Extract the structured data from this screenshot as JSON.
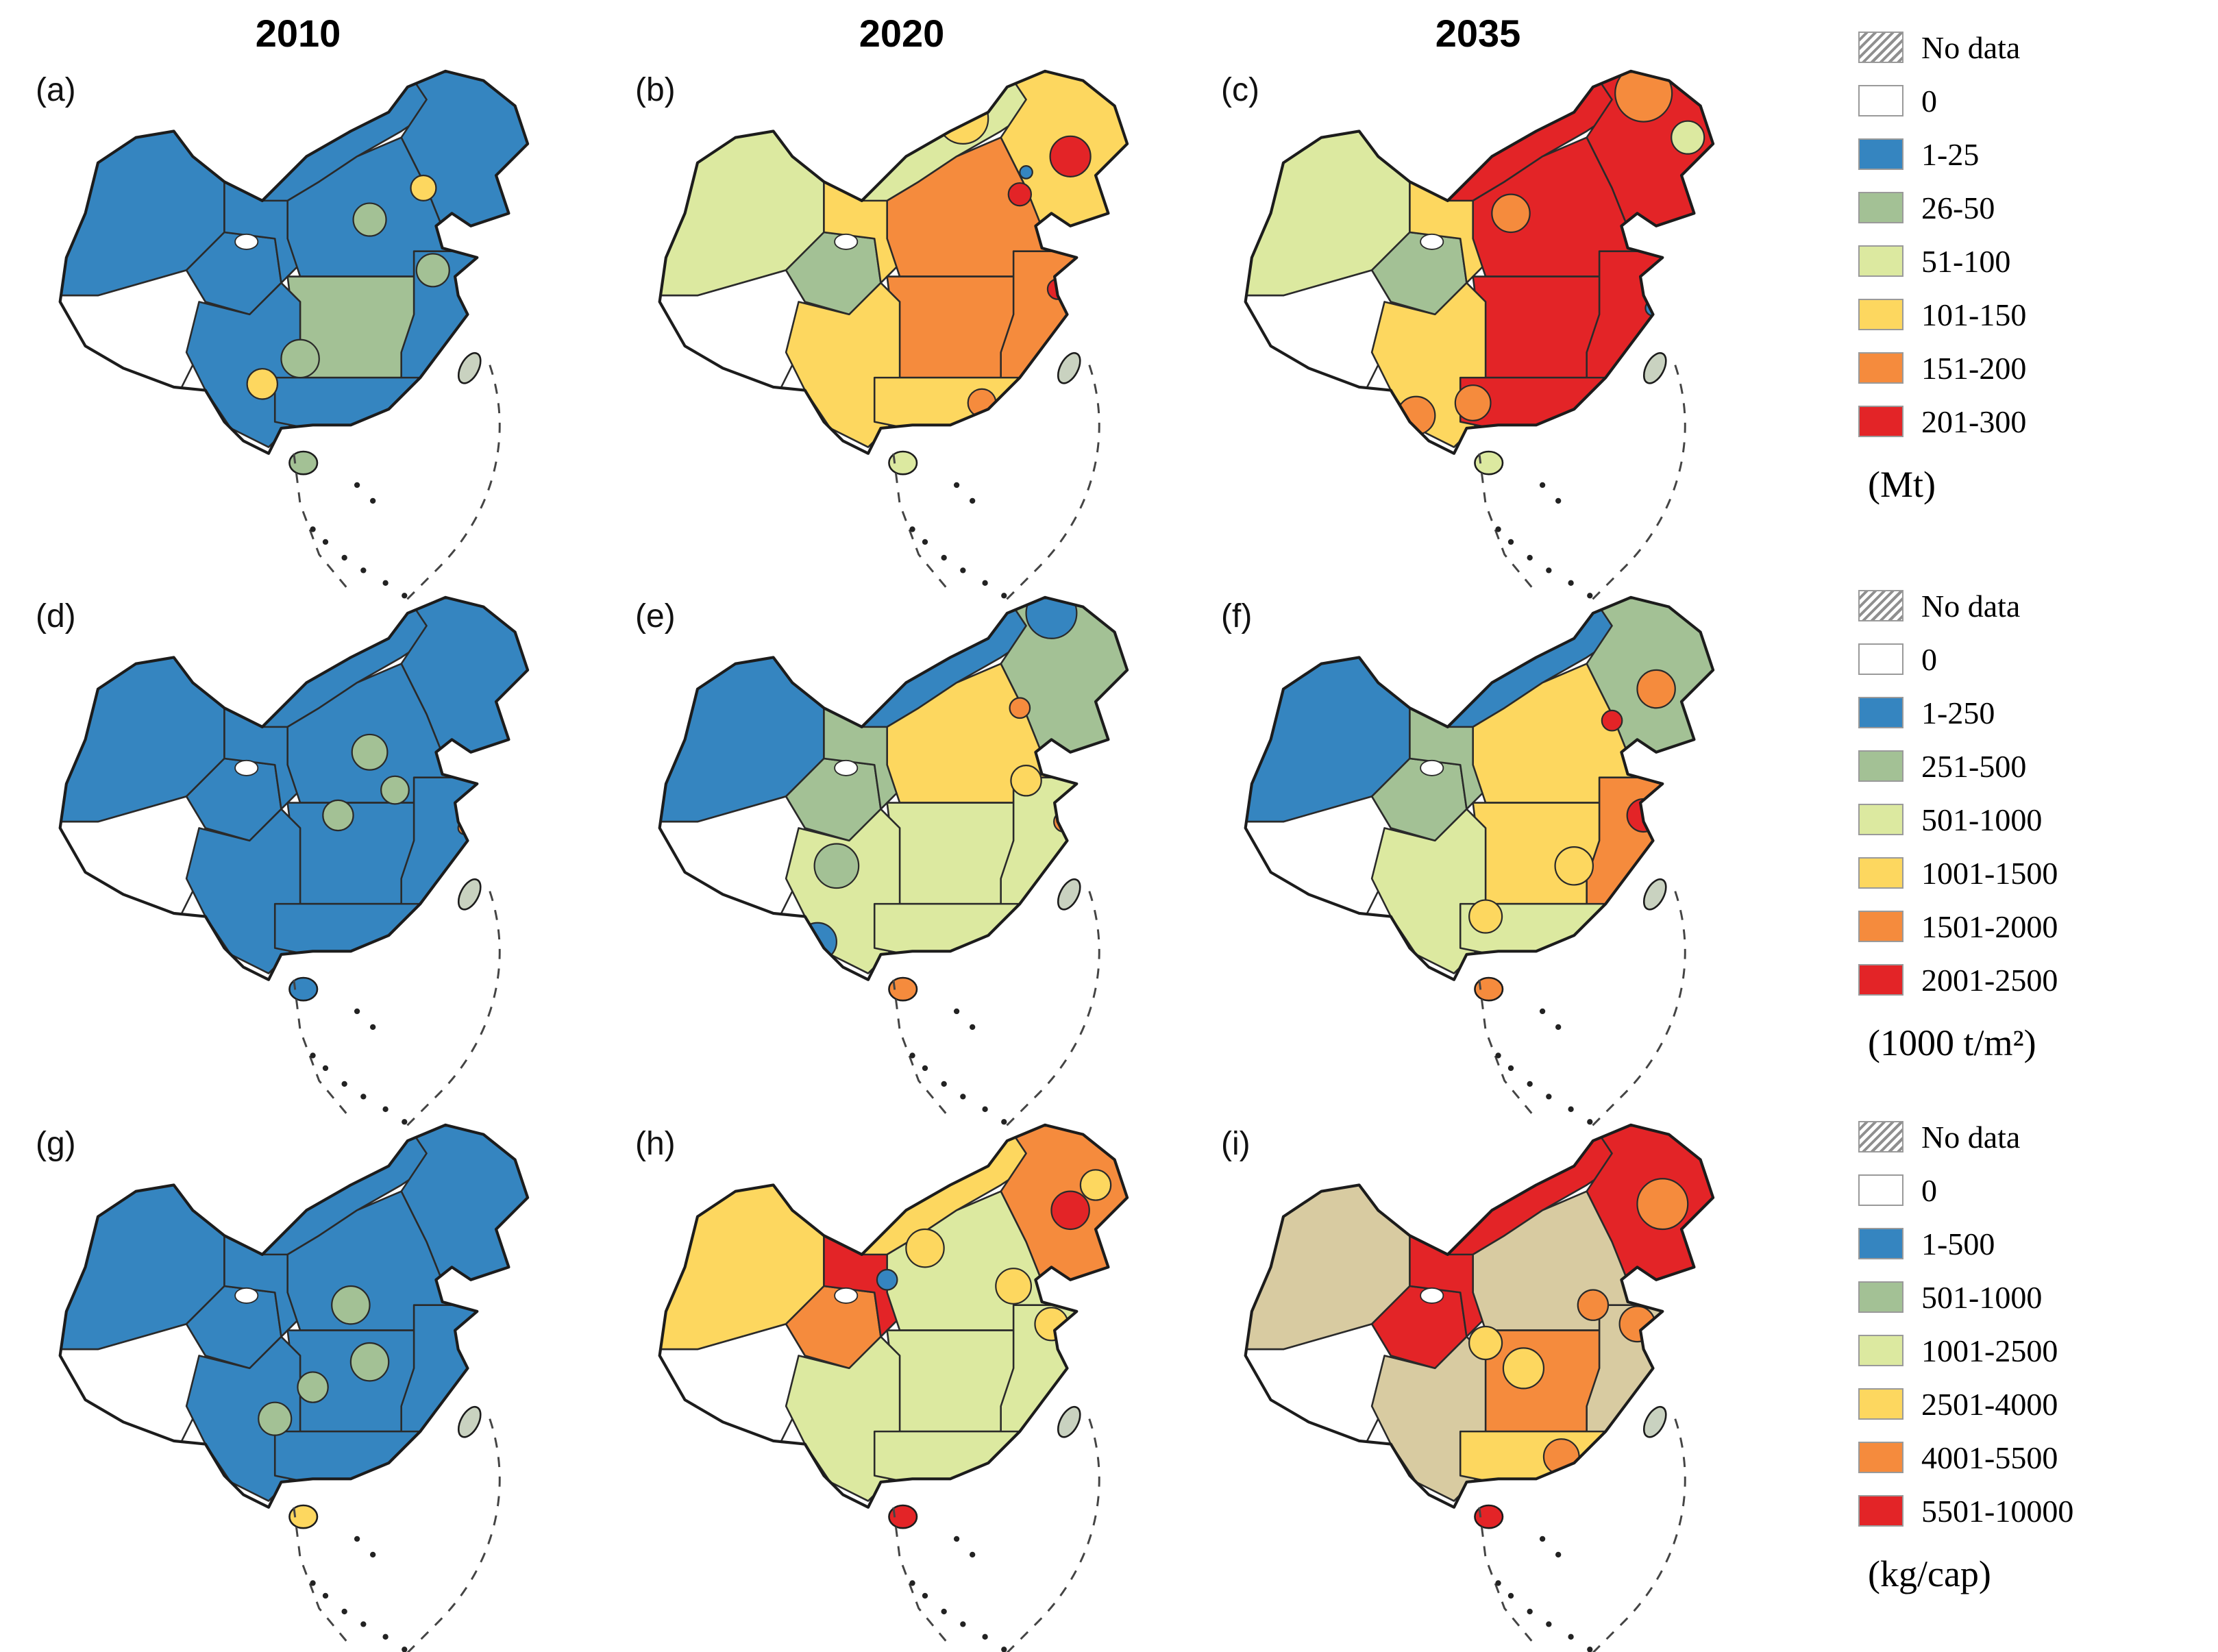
{
  "figure": {
    "column_headers": [
      "2010",
      "2020",
      "2035"
    ],
    "panel_labels": [
      "(a)",
      "(b)",
      "(c)",
      "(d)",
      "(e)",
      "(f)",
      "(g)",
      "(h)",
      "(i)"
    ]
  },
  "colors": {
    "white": "#ffffff",
    "blue": "#3585c0",
    "green": "#a3c195",
    "light_green": "#dce9a0",
    "yellow": "#fdd75f",
    "orange": "#f58b3d",
    "red": "#e32427",
    "tan": "#d8cba1",
    "gray": "#c9d2c0",
    "hatch_stripe": "#8f8f8f",
    "map_outline": "#1c1c1c"
  },
  "legends": [
    {
      "id": "mt",
      "unit": "(Mt)",
      "entries": [
        {
          "label": "No data",
          "swatch": "hatch"
        },
        {
          "label": "0",
          "swatch": "white"
        },
        {
          "label": "1-25",
          "swatch": "blue"
        },
        {
          "label": "26-50",
          "swatch": "green"
        },
        {
          "label": "51-100",
          "swatch": "light_green"
        },
        {
          "label": "101-150",
          "swatch": "yellow"
        },
        {
          "label": "151-200",
          "swatch": "orange"
        },
        {
          "label": "201-300",
          "swatch": "red"
        }
      ]
    },
    {
      "id": "t-per-m2",
      "unit": "(1000 t/m²)",
      "entries": [
        {
          "label": "No data",
          "swatch": "hatch"
        },
        {
          "label": "0",
          "swatch": "white"
        },
        {
          "label": "1-250",
          "swatch": "blue"
        },
        {
          "label": "251-500",
          "swatch": "green"
        },
        {
          "label": "501-1000",
          "swatch": "light_green"
        },
        {
          "label": "1001-1500",
          "swatch": "yellow"
        },
        {
          "label": "1501-2000",
          "swatch": "orange"
        },
        {
          "label": "2001-2500",
          "swatch": "red"
        }
      ]
    },
    {
      "id": "kg-per-cap",
      "unit": "(kg/cap)",
      "entries": [
        {
          "label": "No data",
          "swatch": "hatch"
        },
        {
          "label": "0",
          "swatch": "white"
        },
        {
          "label": "1-500",
          "swatch": "blue"
        },
        {
          "label": "501-1000",
          "swatch": "green"
        },
        {
          "label": "1001-2500",
          "swatch": "light_green"
        },
        {
          "label": "2501-4000",
          "swatch": "yellow"
        },
        {
          "label": "4001-5500",
          "swatch": "orange"
        },
        {
          "label": "5501-10000",
          "swatch": "red"
        }
      ]
    }
  ],
  "maps": {
    "panels": [
      {
        "id": "a",
        "year": "2010",
        "unit": "(Mt)",
        "regions": {
          "xinjiang": "blue",
          "tibet": "white",
          "qinghai": "blue",
          "gansu": "blue",
          "inner_mongolia": "blue",
          "northeast": "blue",
          "north_china": "blue",
          "central": "green",
          "east_coast": "blue",
          "southwest": "blue",
          "south": "blue"
        },
        "patches": [
          [
            65.5,
            20,
            2,
            "yellow"
          ],
          [
            40,
            51,
            2.4,
            "yellow"
          ],
          [
            46,
            47,
            3,
            "green"
          ],
          [
            67,
            33,
            2.6,
            "green"
          ],
          [
            57,
            25,
            2.6,
            "green"
          ]
        ],
        "hainan": "green",
        "taiwan": "gray"
      },
      {
        "id": "b",
        "year": "2020",
        "unit": "(Mt)",
        "regions": {
          "xinjiang": "light_green",
          "tibet": "white",
          "qinghai": "green",
          "gansu": "yellow",
          "inner_mongolia": "light_green",
          "northeast": "yellow",
          "north_china": "orange",
          "central": "orange",
          "east_coast": "orange",
          "southwest": "yellow",
          "south": "yellow"
        },
        "patches": [
          [
            56,
            9,
            4,
            "yellow"
          ],
          [
            73,
            15,
            3.2,
            "red"
          ],
          [
            65,
            21,
            1.8,
            "red"
          ],
          [
            66,
            17.5,
            1,
            "blue"
          ],
          [
            71,
            36,
            1.6,
            "red"
          ],
          [
            59,
            54,
            2.2,
            "orange"
          ]
        ],
        "hainan": "light_green",
        "taiwan": "gray"
      },
      {
        "id": "c",
        "year": "2035",
        "unit": "(Mt)",
        "regions": {
          "xinjiang": "light_green",
          "tibet": "white",
          "qinghai": "green",
          "gansu": "yellow",
          "inner_mongolia": "red",
          "northeast": "red",
          "north_china": "red",
          "central": "red",
          "east_coast": "red",
          "southwest": "yellow",
          "south": "red"
        },
        "patches": [
          [
            71,
            5,
            4.5,
            "orange"
          ],
          [
            78,
            12,
            2.6,
            "light_green"
          ],
          [
            35,
            56,
            3,
            "orange"
          ],
          [
            44,
            54,
            2.8,
            "orange"
          ],
          [
            50,
            24,
            3,
            "orange"
          ],
          [
            72.5,
            39,
            1.2,
            "blue"
          ]
        ],
        "hainan": "light_green",
        "taiwan": "gray"
      },
      {
        "id": "d",
        "year": "2010",
        "unit": "(1000 t/m²)",
        "regions": {
          "xinjiang": "blue",
          "tibet": "white",
          "qinghai": "blue",
          "gansu": "blue",
          "inner_mongolia": "blue",
          "northeast": "blue",
          "north_china": "blue",
          "central": "blue",
          "east_coast": "blue",
          "southwest": "blue",
          "south": "blue"
        },
        "patches": [
          [
            57,
            26,
            2.8,
            "green"
          ],
          [
            61,
            32,
            2.2,
            "green"
          ],
          [
            52,
            36,
            2.4,
            "green"
          ],
          [
            72,
            38,
            1,
            "orange"
          ]
        ],
        "hainan": "blue",
        "taiwan": "gray"
      },
      {
        "id": "e",
        "year": "2020",
        "unit": "(1000 t/m²)",
        "regions": {
          "xinjiang": "blue",
          "tibet": "white",
          "qinghai": "green",
          "gansu": "green",
          "inner_mongolia": "blue",
          "northeast": "green",
          "north_china": "yellow",
          "central": "light_green",
          "east_coast": "light_green",
          "southwest": "light_green",
          "south": "light_green"
        },
        "patches": [
          [
            70,
            4,
            4,
            "blue"
          ],
          [
            36,
            44,
            3.5,
            "green"
          ],
          [
            33,
            56,
            3,
            "blue"
          ],
          [
            72,
            37,
            1.6,
            "orange"
          ],
          [
            65,
            19,
            1.6,
            "orange"
          ],
          [
            66,
            30.5,
            2.4,
            "yellow"
          ]
        ],
        "hainan": "orange",
        "taiwan": "gray"
      },
      {
        "id": "f",
        "year": "2035",
        "unit": "(1000 t/m²)",
        "regions": {
          "xinjiang": "blue",
          "tibet": "white",
          "qinghai": "green",
          "gansu": "green",
          "inner_mongolia": "blue",
          "northeast": "green",
          "north_china": "yellow",
          "central": "yellow",
          "east_coast": "orange",
          "southwest": "light_green",
          "south": "light_green"
        },
        "patches": [
          [
            73,
            16,
            3,
            "orange"
          ],
          [
            71,
            36,
            2.6,
            "red"
          ],
          [
            66,
            21,
            1.6,
            "red"
          ],
          [
            46,
            52,
            2.6,
            "yellow"
          ],
          [
            60,
            44,
            3,
            "yellow"
          ]
        ],
        "hainan": "orange",
        "taiwan": "gray"
      },
      {
        "id": "g",
        "year": "2010",
        "unit": "(kg/cap)",
        "regions": {
          "xinjiang": "blue",
          "tibet": "white",
          "qinghai": "blue",
          "gansu": "blue",
          "inner_mongolia": "blue",
          "northeast": "blue",
          "north_china": "blue",
          "central": "blue",
          "east_coast": "blue",
          "southwest": "blue",
          "south": "blue"
        },
        "patches": [
          [
            54,
            30,
            3,
            "green"
          ],
          [
            57,
            39,
            3,
            "green"
          ],
          [
            42,
            48,
            2.6,
            "green"
          ],
          [
            48,
            43,
            2.4,
            "green"
          ]
        ],
        "hainan": "yellow",
        "taiwan": "gray"
      },
      {
        "id": "h",
        "year": "2020",
        "unit": "(kg/cap)",
        "regions": {
          "xinjiang": "yellow",
          "tibet": "white",
          "qinghai": "orange",
          "gansu": "red",
          "inner_mongolia": "yellow",
          "northeast": "orange",
          "north_china": "light_green",
          "central": "light_green",
          "east_coast": "light_green",
          "southwest": "light_green",
          "south": "light_green"
        },
        "patches": [
          [
            73,
            15,
            3,
            "red"
          ],
          [
            77,
            11,
            2.4,
            "yellow"
          ],
          [
            64,
            27,
            2.8,
            "yellow"
          ],
          [
            70,
            33,
            2.6,
            "yellow"
          ],
          [
            44,
            26,
            1.6,
            "blue"
          ],
          [
            50,
            21,
            3,
            "yellow"
          ]
        ],
        "hainan": "red",
        "taiwan": "gray"
      },
      {
        "id": "i",
        "year": "2035",
        "unit": "(kg/cap)",
        "regions": {
          "xinjiang": "tan",
          "tibet": "white",
          "qinghai": "red",
          "gansu": "red",
          "inner_mongolia": "red",
          "northeast": "red",
          "north_china": "tan",
          "central": "orange",
          "east_coast": "tan",
          "southwest": "tan",
          "south": "yellow"
        },
        "patches": [
          [
            74,
            14,
            4,
            "orange"
          ],
          [
            70,
            33,
            2.8,
            "orange"
          ],
          [
            52,
            40,
            3.2,
            "yellow"
          ],
          [
            58,
            54,
            2.8,
            "orange"
          ],
          [
            63,
            30,
            2.4,
            "orange"
          ],
          [
            46,
            36,
            2.6,
            "yellow"
          ]
        ],
        "hainan": "red",
        "taiwan": "gray"
      }
    ]
  }
}
